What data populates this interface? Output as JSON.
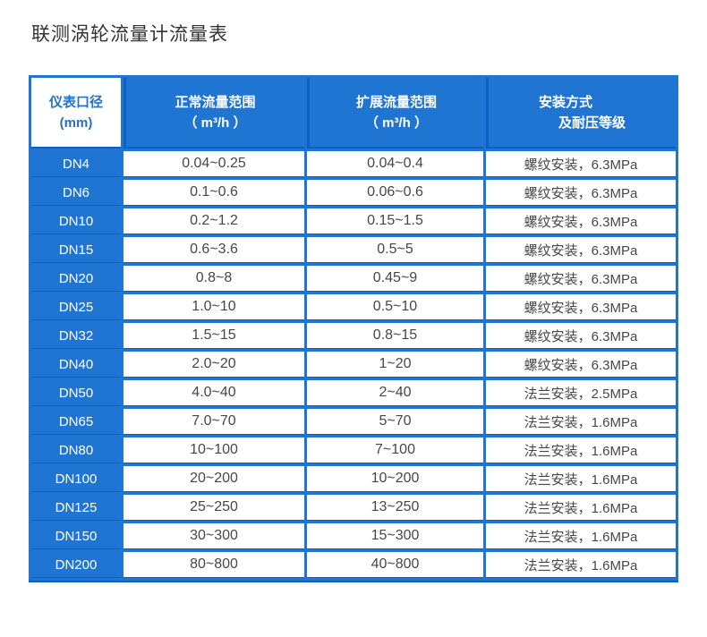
{
  "page": {
    "title": "联测涡轮流量计流量表"
  },
  "colors": {
    "primary_blue": "#2075d2",
    "divider_dark_blue": "#0b60c4",
    "header_text": "#ffffff",
    "first_header_text": "#2471c9",
    "body_text": "#474747",
    "title_text": "#333333"
  },
  "table": {
    "headers": [
      {
        "line1": "仪表口径",
        "line2": "(mm)"
      },
      {
        "line1": "正常流量范围",
        "line2": "（ m³/h ）"
      },
      {
        "line1": "扩展流量范围",
        "line2": "（ m³/h ）"
      },
      {
        "line1": "安装方式",
        "line2": "及耐压等级"
      }
    ],
    "rows": [
      {
        "diameter": "DN4",
        "normal_range": "0.04~0.25",
        "extended_range": "0.04~0.4",
        "installation": "螺纹安装，6.3MPa"
      },
      {
        "diameter": "DN6",
        "normal_range": "0.1~0.6",
        "extended_range": "0.06~0.6",
        "installation": "螺纹安装，6.3MPa"
      },
      {
        "diameter": "DN10",
        "normal_range": "0.2~1.2",
        "extended_range": "0.15~1.5",
        "installation": "螺纹安装，6.3MPa"
      },
      {
        "diameter": "DN15",
        "normal_range": "0.6~3.6",
        "extended_range": "0.5~5",
        "installation": "螺纹安装，6.3MPa"
      },
      {
        "diameter": "DN20",
        "normal_range": "0.8~8",
        "extended_range": "0.45~9",
        "installation": "螺纹安装，6.3MPa"
      },
      {
        "diameter": "DN25",
        "normal_range": "1.0~10",
        "extended_range": "0.5~10",
        "installation": "螺纹安装，6.3MPa"
      },
      {
        "diameter": "DN32",
        "normal_range": "1.5~15",
        "extended_range": "0.8~15",
        "installation": "螺纹安装，6.3MPa"
      },
      {
        "diameter": "DN40",
        "normal_range": "2.0~20",
        "extended_range": "1~20",
        "installation": "螺纹安装，6.3MPa"
      },
      {
        "diameter": "DN50",
        "normal_range": "4.0~40",
        "extended_range": "2~40",
        "installation": "法兰安装，2.5MPa"
      },
      {
        "diameter": "DN65",
        "normal_range": "7.0~70",
        "extended_range": "5~70",
        "installation": "法兰安装，1.6MPa"
      },
      {
        "diameter": "DN80",
        "normal_range": "10~100",
        "extended_range": "7~100",
        "installation": "法兰安装，1.6MPa"
      },
      {
        "diameter": "DN100",
        "normal_range": "20~200",
        "extended_range": "10~200",
        "installation": "法兰安装，1.6MPa"
      },
      {
        "diameter": "DN125",
        "normal_range": "25~250",
        "extended_range": "13~250",
        "installation": "法兰安装，1.6MPa"
      },
      {
        "diameter": "DN150",
        "normal_range": "30~300",
        "extended_range": "15~300",
        "installation": "法兰安装，1.6MPa"
      },
      {
        "diameter": "DN200",
        "normal_range": "80~800",
        "extended_range": "40~800",
        "installation": "法兰安装，1.6MPa"
      }
    ]
  }
}
